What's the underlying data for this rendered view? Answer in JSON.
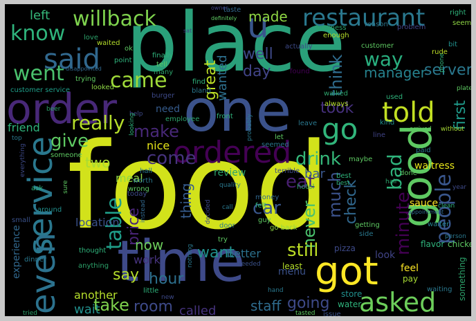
{
  "palette": {
    "background": "#000000",
    "frame": "#c8c8c8",
    "colors": [
      "#440154",
      "#3b528b",
      "#21908d",
      "#2ca26a",
      "#5ec962",
      "#a8db34",
      "#fde725",
      "#31688e",
      "#35b779",
      "#482878"
    ]
  },
  "words": [
    {
      "text": "food",
      "c": "#d2e21b"
    },
    {
      "text": "place",
      "c": "#2aa07a"
    },
    {
      "text": "time",
      "c": "#3e4a89"
    },
    {
      "text": "one",
      "c": "#3b528b"
    },
    {
      "text": "good",
      "c": "#5ec962"
    },
    {
      "text": "service",
      "c": "#2a788e"
    },
    {
      "text": "order",
      "c": "#482878"
    },
    {
      "text": "even",
      "c": "#2c728e"
    },
    {
      "text": "got",
      "c": "#fde725"
    },
    {
      "text": "ordered",
      "c": "#440154"
    },
    {
      "text": "told",
      "c": "#c2df23"
    },
    {
      "text": "asked",
      "c": "#6ccd5a"
    },
    {
      "text": "said",
      "c": "#31688e"
    },
    {
      "text": "restaurant",
      "c": "#2a788e"
    },
    {
      "text": "willback",
      "c": "#7fd34e"
    },
    {
      "text": "know",
      "c": "#2fb47c"
    },
    {
      "text": "went",
      "c": "#4ac16d"
    },
    {
      "text": "go",
      "c": "#31b57b"
    },
    {
      "text": "u",
      "c": "#39568c"
    },
    {
      "text": "table",
      "c": "#1f9e89"
    },
    {
      "text": "people",
      "c": "#39568c"
    },
    {
      "text": "came",
      "c": "#a0da39"
    },
    {
      "text": "really",
      "c": "#b5de2b"
    },
    {
      "text": "give",
      "c": "#5ec962"
    },
    {
      "text": "make",
      "c": "#482878"
    },
    {
      "text": "come",
      "c": "#46337e"
    },
    {
      "text": "drink",
      "c": "#35b779"
    },
    {
      "text": "great",
      "c": "#bddf26"
    },
    {
      "text": "wanted",
      "c": "#2d708e"
    },
    {
      "text": "well",
      "c": "#3e4a89"
    },
    {
      "text": "day",
      "c": "#414487"
    },
    {
      "text": "made",
      "c": "#8fd744"
    },
    {
      "text": "think",
      "c": "#2f6c8e"
    },
    {
      "text": "way",
      "c": "#29af7f"
    },
    {
      "text": "took",
      "c": "#46307e"
    },
    {
      "text": "manager",
      "c": "#26828e"
    },
    {
      "text": "server",
      "c": "#2a788e"
    },
    {
      "text": "first",
      "c": "#1f9a8a"
    },
    {
      "text": "minute",
      "c": "#440154"
    },
    {
      "text": "bad",
      "c": "#2fb47c"
    },
    {
      "text": "eat",
      "c": "#481f70"
    },
    {
      "text": "much",
      "c": "#3b528b"
    },
    {
      "text": "check",
      "c": "#31688e"
    },
    {
      "text": "never",
      "c": "#4ac16d"
    },
    {
      "text": "price",
      "c": "#482475"
    },
    {
      "text": "thing",
      "c": "#365c8d"
    },
    {
      "text": "car",
      "c": "#39568c"
    },
    {
      "text": "now",
      "c": "#6ccd5a"
    },
    {
      "text": "want",
      "c": "#21908d"
    },
    {
      "text": "still",
      "c": "#bddf26"
    },
    {
      "text": "say",
      "c": "#b5de2b"
    },
    {
      "text": "hour",
      "c": "#2d708e"
    },
    {
      "text": "take",
      "c": "#7fd34e"
    },
    {
      "text": "room",
      "c": "#3e4a89"
    },
    {
      "text": "going",
      "c": "#3e4a89"
    },
    {
      "text": "staff",
      "c": "#2f6c8e"
    },
    {
      "text": "called",
      "c": "#46337e"
    },
    {
      "text": "wait",
      "c": "#21908d"
    },
    {
      "text": "two",
      "c": "#a8db34"
    },
    {
      "text": "nice",
      "c": "#e5e419"
    },
    {
      "text": "another",
      "c": "#b5de2b"
    },
    {
      "text": "work",
      "c": "#46337e"
    },
    {
      "text": "review",
      "c": "#2ca26a"
    },
    {
      "text": "bar",
      "c": "#39568c"
    },
    {
      "text": "better",
      "c": "#2c728e"
    },
    {
      "text": "left",
      "c": "#35b779"
    },
    {
      "text": "need",
      "c": "#365c8d"
    },
    {
      "text": "friend",
      "c": "#2fb47c"
    },
    {
      "text": "meal",
      "c": "#8fd744"
    },
    {
      "text": "location",
      "c": "#3b528b"
    },
    {
      "text": "experience",
      "c": "#31688e"
    },
    {
      "text": "customer service",
      "c": "#1f9e89"
    },
    {
      "text": "waitress",
      "c": "#e5e419"
    },
    {
      "text": "sauce",
      "c": "#fde725"
    },
    {
      "text": "look",
      "c": "#414487"
    },
    {
      "text": "feel",
      "c": "#fde725"
    },
    {
      "text": "pay",
      "c": "#a8db34"
    },
    {
      "text": "menu",
      "c": "#3b528b"
    },
    {
      "text": "pizza",
      "c": "#3e4a89"
    },
    {
      "text": "flavor",
      "c": "#2fb47c"
    },
    {
      "text": "chicken",
      "c": "#5ec962"
    },
    {
      "text": "waiter",
      "c": "#26828e"
    },
    {
      "text": "least",
      "c": "#b5de2b"
    },
    {
      "text": "store",
      "c": "#21908d"
    },
    {
      "text": "water",
      "c": "#2fb47c"
    },
    {
      "text": "issue",
      "c": "#3b528b"
    },
    {
      "text": "something",
      "c": "#2ca26a"
    },
    {
      "text": "business",
      "c": "#2ca26a"
    },
    {
      "text": "enough",
      "c": "#b5de2b"
    },
    {
      "text": "customer",
      "c": "#5ec962"
    },
    {
      "text": "actually",
      "c": "#3e4a89"
    },
    {
      "text": "bit",
      "c": "#21908d"
    },
    {
      "text": "ok",
      "c": "#5ec962"
    },
    {
      "text": "love",
      "c": "#2ca26a"
    },
    {
      "text": "rude",
      "c": "#bddf26"
    },
    {
      "text": "problem",
      "c": "#414487"
    },
    {
      "text": "reason",
      "c": "#2a788e"
    },
    {
      "text": "right",
      "c": "#2fb47c"
    },
    {
      "text": "seem",
      "c": "#8fd744"
    },
    {
      "text": "taste",
      "c": "#31688e"
    },
    {
      "text": "definitely",
      "c": "#5ec962"
    },
    {
      "text": "sat",
      "c": "#414487"
    },
    {
      "text": "owner",
      "c": "#414487"
    },
    {
      "text": "waited",
      "c": "#b5de2b"
    },
    {
      "text": "finally",
      "c": "#2fb47c"
    },
    {
      "text": "tell",
      "c": "#5ec962"
    },
    {
      "text": "many",
      "c": "#2ca26a"
    },
    {
      "text": "point",
      "c": "#2fb47c"
    },
    {
      "text": "disappointed",
      "c": "#31688e"
    },
    {
      "text": "trying",
      "c": "#5ec962"
    },
    {
      "text": "looked",
      "c": "#8fd744"
    },
    {
      "text": "burger",
      "c": "#3e4a89"
    },
    {
      "text": "employee",
      "c": "#2ca26a"
    },
    {
      "text": "front",
      "c": "#2fb47c"
    },
    {
      "text": "always",
      "c": "#b5de2b"
    },
    {
      "text": "leave",
      "c": "#2a788e"
    },
    {
      "text": "walked",
      "c": "#2ca26a"
    },
    {
      "text": "found",
      "c": "#440154"
    },
    {
      "text": "find",
      "c": "#2fb47c"
    },
    {
      "text": "bland",
      "c": "#2a788e"
    },
    {
      "text": "used",
      "c": "#2fb47c"
    },
    {
      "text": "line",
      "c": "#414487"
    },
    {
      "text": "arrived",
      "c": "#5ec962"
    },
    {
      "text": "without",
      "c": "#a8db34"
    },
    {
      "text": "kind",
      "c": "#21908d"
    },
    {
      "text": "seemed",
      "c": "#2a788e"
    },
    {
      "text": "let",
      "c": "#5ec962"
    },
    {
      "text": "maybe",
      "c": "#5ec962"
    },
    {
      "text": "best",
      "c": "#2fb47c"
    },
    {
      "text": "paid",
      "c": "#2a788e"
    },
    {
      "text": "done",
      "c": "#5ec962"
    },
    {
      "text": "worth",
      "c": "#2a788e"
    },
    {
      "text": "wrong",
      "c": "#5ec962"
    },
    {
      "text": "hall",
      "c": "#2a788e"
    },
    {
      "text": "terrible",
      "c": "#3e4a89"
    },
    {
      "text": "hotel",
      "c": "#2ca26a"
    },
    {
      "text": "someone",
      "c": "#5ec962"
    },
    {
      "text": "everything",
      "c": "#3e4a89"
    },
    {
      "text": "ask",
      "c": "#2fb47c"
    },
    {
      "text": "small",
      "c": "#3b528b"
    },
    {
      "text": "around",
      "c": "#21908d"
    },
    {
      "text": "today",
      "c": "#3e4a89"
    },
    {
      "text": "sure",
      "c": "#5ec962"
    },
    {
      "text": "quality",
      "c": "#2a788e"
    },
    {
      "text": "money",
      "c": "#31688e"
    },
    {
      "text": "felt",
      "c": "#2fb47c"
    },
    {
      "text": "guy",
      "c": "#5ec962"
    },
    {
      "text": "go back",
      "c": "#8fd744"
    },
    {
      "text": "door",
      "c": "#2a788e"
    },
    {
      "text": "instead",
      "c": "#31688e"
    },
    {
      "text": "decided",
      "c": "#3e4a89"
    },
    {
      "text": "try",
      "c": "#5ec962"
    },
    {
      "text": "thought",
      "c": "#2fb47c"
    },
    {
      "text": "dinner",
      "c": "#2a788e"
    },
    {
      "text": "anything",
      "c": "#2ca26a"
    },
    {
      "text": "little",
      "c": "#2fb47c"
    },
    {
      "text": "new",
      "c": "#3e4a89"
    },
    {
      "text": "needed",
      "c": "#3b528b"
    },
    {
      "text": "nothing",
      "c": "#2a788e"
    },
    {
      "text": "tried",
      "c": "#2ca26a"
    },
    {
      "text": "tasted",
      "c": "#5ec962"
    },
    {
      "text": "hand",
      "c": "#2a788e"
    },
    {
      "text": "getting",
      "c": "#5ec962"
    },
    {
      "text": "side",
      "c": "#2a788e"
    },
    {
      "text": "hair",
      "c": "#2ca26a"
    },
    {
      "text": "appointment",
      "c": "#31688e"
    },
    {
      "text": "clean",
      "c": "#2fb47c"
    },
    {
      "text": "year",
      "c": "#3e4a89"
    },
    {
      "text": "person",
      "c": "#2a788e"
    },
    {
      "text": "plate",
      "c": "#5ec962"
    },
    {
      "text": "phone",
      "c": "#2fb47c"
    },
    {
      "text": "top",
      "c": "#2a788e"
    },
    {
      "text": "beer",
      "c": "#2ca26a"
    },
    {
      "text": "help",
      "c": "#3e4a89"
    },
    {
      "text": "looking",
      "c": "#2fb47c"
    },
    {
      "text": "probably",
      "c": "#2a788e"
    },
    {
      "text": "waiting",
      "c": "#2a788e"
    },
    {
      "text": "best",
      "c": "#2fb47c"
    },
    {
      "text": "call",
      "c": "#2a788e"
    }
  ]
}
